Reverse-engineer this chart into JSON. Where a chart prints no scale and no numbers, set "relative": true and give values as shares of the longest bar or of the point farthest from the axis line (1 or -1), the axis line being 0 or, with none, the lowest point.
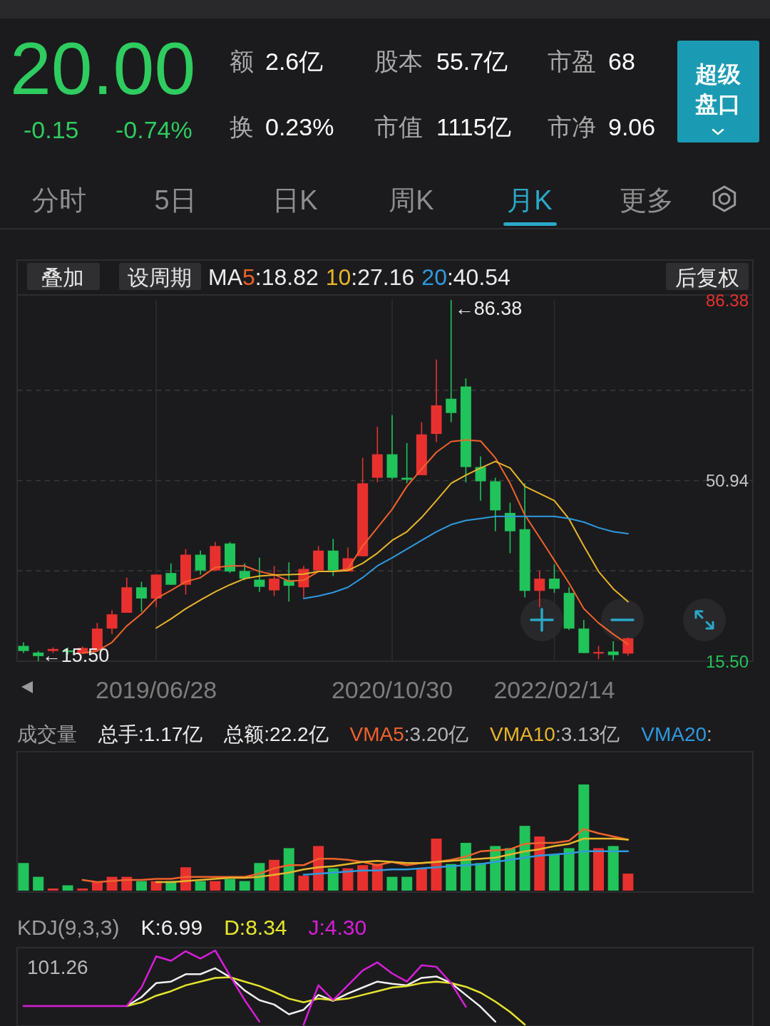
{
  "chart_data": [
    {
      "type": "other",
      "annotations": [
        "20.00",
        "-0.15",
        "-0.74%",
        "额",
        "2.6亿",
        "股本",
        "55.7亿",
        "市盈",
        "68",
        "换",
        "0.23%",
        "市值",
        "1115亿",
        "市净",
        "9.06",
        "超级",
        "盘口",
        "分时",
        "5日",
        "日K",
        "周K",
        "月K",
        "更多",
        "叠加",
        "设周期",
        "后复权"
      ]
    },
    {
      "type": "candlestick",
      "categories": [
        null,
        null,
        null,
        null,
        null,
        null,
        null,
        null,
        null,
        "2019/06/28",
        null,
        null,
        null,
        null,
        null,
        null,
        null,
        null,
        null,
        null,
        null,
        null,
        null,
        null,
        null,
        "2020/10/30",
        null,
        null,
        null,
        null,
        null,
        null,
        null,
        null,
        null,
        null,
        "2022/02/14",
        null,
        null,
        null,
        null,
        null
      ],
      "ohlc": [
        [
          18.5,
          19.2,
          17.1,
          17.5
        ],
        [
          17.2,
          17.5,
          15.5,
          16.5
        ],
        [
          17.5,
          18.2,
          17.1,
          17.9
        ],
        [
          17.6,
          18.2,
          16.8,
          17.3
        ],
        [
          17.0,
          18.4,
          16.9,
          18.1
        ],
        [
          17.6,
          23.0,
          17.4,
          21.9
        ],
        [
          21.9,
          25.5,
          20.8,
          24.7
        ],
        [
          25.0,
          31.9,
          25.0,
          30.0
        ],
        [
          30.0,
          31.1,
          25.2,
          27.8
        ],
        [
          27.8,
          32.5,
          26.1,
          32.5
        ],
        [
          32.8,
          34.7,
          30.5,
          30.5
        ],
        [
          30.5,
          37.5,
          28.6,
          36.4
        ],
        [
          36.4,
          37.2,
          32.5,
          33.3
        ],
        [
          33.3,
          38.9,
          33.3,
          38.1
        ],
        [
          38.6,
          38.9,
          32.8,
          33.1
        ],
        [
          33.2,
          34.7,
          31.4,
          31.7
        ],
        [
          31.5,
          35.8,
          29.1,
          30.1
        ],
        [
          29.4,
          34.2,
          28.3,
          31.7
        ],
        [
          31.4,
          34.9,
          27.2,
          30.3
        ],
        [
          30.0,
          34.2,
          28.0,
          33.6
        ],
        [
          33.3,
          38.1,
          33.3,
          37.2
        ],
        [
          37.2,
          39.5,
          32.2,
          33.3
        ],
        [
          33.1,
          37.8,
          33.1,
          35.7
        ],
        [
          36.1,
          55.4,
          36.1,
          50.4
        ],
        [
          51.5,
          61.5,
          50.6,
          56.1
        ],
        [
          56.1,
          63.8,
          51.2,
          51.5
        ],
        [
          51.5,
          58.3,
          50.4,
          51.1
        ],
        [
          52.0,
          62.4,
          52.0,
          60.0
        ],
        [
          60.1,
          74.7,
          58.5,
          65.7
        ],
        [
          67.0,
          86.38,
          62.4,
          64.2
        ],
        [
          69.4,
          71.0,
          50.6,
          53.6
        ],
        [
          53.6,
          55.7,
          47.0,
          50.8
        ],
        [
          50.8,
          51.5,
          41.0,
          45.1
        ],
        [
          44.6,
          46.6,
          36.7,
          41.0
        ],
        [
          41.4,
          50.4,
          28.0,
          29.3
        ],
        [
          29.3,
          33.3,
          26.1,
          31.7
        ],
        [
          31.7,
          34.5,
          28.9,
          29.7
        ],
        [
          28.9,
          30.0,
          21.6,
          21.9
        ],
        [
          21.9,
          23.6,
          17.1,
          17.1
        ],
        [
          17.0,
          18.5,
          15.9,
          17.3
        ],
        [
          17.4,
          19.4,
          15.7,
          16.7
        ],
        [
          17.0,
          20.2,
          16.6,
          20.0
        ]
      ],
      "colors": [
        "#21c35b",
        "#21c35b",
        "#e8312f",
        "#21c35b",
        "#e8312f",
        "#e8312f",
        "#e8312f",
        "#e8312f",
        "#21c35b",
        "#e8312f",
        "#21c35b",
        "#e8312f",
        "#21c35b",
        "#e8312f",
        "#21c35b",
        "#21c35b",
        "#21c35b",
        "#e8312f",
        "#21c35b",
        "#e8312f",
        "#e8312f",
        "#21c35b",
        "#e8312f",
        "#e8312f",
        "#e8312f",
        "#21c35b",
        "#21c35b",
        "#e8312f",
        "#e8312f",
        "#21c35b",
        "#21c35b",
        "#21c35b",
        "#21c35b",
        "#21c35b",
        "#21c35b",
        "#e8312f",
        "#21c35b",
        "#21c35b",
        "#21c35b",
        "#e8312f",
        "#21c35b",
        "#e8312f"
      ],
      "ylim": [
        15.5,
        86.38
      ],
      "yticks": [
        86.38,
        {
          "value": 68.66,
          "label": null
        },
        50.94,
        {
          "value": 33.22,
          "label": null
        },
        {
          "value": 15.5,
          "label": "15.50"
        }
      ],
      "grid": true,
      "legend": "top",
      "legend_title": "MA",
      "series": [
        {
          "type": "line",
          "name": "5:18.82",
          "color": "#f0622b",
          "values": [
            null,
            null,
            null,
            null,
            17.1,
            17.5,
            19.2,
            22.4,
            24.8,
            27.8,
            29.4,
            31.1,
            31.9,
            33.9,
            34.2,
            34.2,
            33.1,
            32.5,
            31.2,
            31.4,
            33.1,
            33.1,
            33.6,
            38.1,
            41.7,
            45.3,
            49.8,
            53.2,
            56.5,
            58.6,
            58.9,
            58.7,
            55.4,
            50.4,
            44.2,
            39.8,
            35.3,
            30.8,
            25.8,
            23.0,
            20.8,
            18.82
          ]
        },
        {
          "type": "line",
          "name": "10:27.16",
          "color": "#e8b52a",
          "values": [
            null,
            null,
            null,
            null,
            null,
            null,
            null,
            null,
            null,
            22.0,
            23.8,
            25.8,
            27.5,
            29.1,
            30.5,
            31.7,
            32.2,
            32.4,
            32.5,
            32.6,
            33.1,
            33.1,
            33.3,
            34.7,
            36.7,
            39.2,
            40.9,
            43.7,
            47.0,
            50.4,
            52.0,
            53.4,
            54.7,
            53.4,
            49.8,
            48.4,
            47.0,
            43.4,
            38.1,
            33.1,
            29.7,
            27.16
          ]
        },
        {
          "type": "line",
          "name": "20:40.54",
          "color": "#2e9ae0",
          "values": [
            null,
            null,
            null,
            null,
            null,
            null,
            null,
            null,
            null,
            null,
            null,
            null,
            null,
            null,
            null,
            null,
            null,
            null,
            null,
            27.8,
            28.3,
            29.0,
            30.0,
            31.9,
            34.2,
            35.8,
            37.5,
            39.2,
            40.9,
            42.3,
            43.1,
            43.5,
            43.9,
            43.9,
            43.9,
            43.9,
            43.9,
            43.5,
            42.8,
            41.7,
            40.9,
            40.54
          ]
        }
      ],
      "annotations": [
        "←86.38",
        "←15.50"
      ]
    },
    {
      "type": "bar",
      "title": "成交量",
      "relative": true,
      "legend": "top",
      "categories": [
        null,
        null,
        null,
        null,
        null,
        null,
        null,
        null,
        null,
        null,
        null,
        null,
        null,
        null,
        null,
        null,
        null,
        null,
        null,
        null,
        null,
        null,
        null,
        null,
        null,
        null,
        null,
        null,
        null,
        null,
        null,
        null,
        null,
        null,
        null,
        null,
        null,
        null,
        null,
        null,
        null,
        null
      ],
      "annotations": [
        "总手:1.17亿",
        "总额:22.2亿"
      ],
      "series": [
        {
          "values": [
            0.26,
            0.13,
            0.02,
            0.05,
            0.02,
            0.08,
            0.13,
            0.13,
            0.09,
            0.09,
            0.09,
            0.22,
            0.09,
            0.09,
            0.11,
            0.09,
            0.26,
            0.29,
            0.4,
            0.14,
            0.42,
            0.21,
            0.21,
            0.24,
            0.25,
            0.13,
            0.13,
            0.21,
            0.49,
            0.25,
            0.45,
            0.26,
            0.42,
            0.4,
            0.61,
            0.51,
            0.34,
            0.4,
            1,
            0.4,
            0.42,
            0.16
          ],
          "colors": [
            "#21c35b",
            "#21c35b",
            "#e8312f",
            "#21c35b",
            "#e8312f",
            "#e8312f",
            "#e8312f",
            "#e8312f",
            "#21c35b",
            "#e8312f",
            "#21c35b",
            "#e8312f",
            "#21c35b",
            "#e8312f",
            "#21c35b",
            "#21c35b",
            "#21c35b",
            "#e8312f",
            "#21c35b",
            "#e8312f",
            "#e8312f",
            "#21c35b",
            "#e8312f",
            "#e8312f",
            "#e8312f",
            "#21c35b",
            "#21c35b",
            "#e8312f",
            "#e8312f",
            "#21c35b",
            "#21c35b",
            "#21c35b",
            "#21c35b",
            "#21c35b",
            "#21c35b",
            "#e8312f",
            "#21c35b",
            "#21c35b",
            "#21c35b",
            "#e8312f",
            "#21c35b",
            "#e8312f"
          ]
        },
        {
          "type": "line",
          "name": "VMA5:3.20亿",
          "color": "#f0622b",
          "values": [
            null,
            null,
            null,
            null,
            0.1,
            0.08,
            0.09,
            0.1,
            0.1,
            0.11,
            0.11,
            0.13,
            0.13,
            0.13,
            0.13,
            0.13,
            0.16,
            0.21,
            0.24,
            0.24,
            0.3,
            0.3,
            0.29,
            0.27,
            0.24,
            0.27,
            0.24,
            0.26,
            0.27,
            0.29,
            0.32,
            0.37,
            0.38,
            0.39,
            0.44,
            0.45,
            0.45,
            0.47,
            0.58,
            0.54,
            0.51,
            0.48
          ]
        },
        {
          "type": "line",
          "name": "VMA10:3.13亿",
          "color": "#e8b52a",
          "values": [
            null,
            null,
            null,
            null,
            null,
            null,
            null,
            null,
            null,
            0.08,
            0.08,
            0.09,
            0.1,
            0.11,
            0.12,
            0.12,
            0.13,
            0.15,
            0.17,
            0.2,
            0.22,
            0.23,
            0.25,
            0.27,
            0.28,
            0.27,
            0.26,
            0.26,
            0.27,
            0.28,
            0.29,
            0.3,
            0.31,
            0.34,
            0.37,
            0.39,
            0.42,
            0.44,
            0.49,
            0.49,
            0.49,
            0.48
          ]
        },
        {
          "type": "line",
          "name": "VMA20:",
          "color": "#2e9ae0",
          "values": [
            null,
            null,
            null,
            null,
            null,
            null,
            null,
            null,
            null,
            null,
            null,
            null,
            null,
            null,
            null,
            null,
            null,
            null,
            null,
            0.15,
            0.16,
            0.17,
            0.18,
            0.19,
            0.19,
            0.2,
            0.2,
            0.21,
            0.22,
            0.23,
            0.24,
            0.25,
            0.27,
            0.29,
            0.31,
            0.33,
            0.34,
            0.35,
            0.37,
            0.37,
            0.37,
            0.37
          ]
        }
      ]
    },
    {
      "type": "line",
      "title": "KDJ(9,3,3)",
      "relative": true,
      "legend": "top",
      "categories": [
        null,
        null,
        null,
        null,
        null,
        null,
        null,
        null,
        null,
        null,
        null,
        null,
        null,
        null,
        null,
        null,
        null,
        null,
        null,
        null,
        null,
        null,
        null,
        null,
        null,
        null,
        null,
        null,
        null,
        null,
        null,
        null,
        null,
        null,
        null,
        null,
        null,
        null,
        null,
        null,
        null,
        null
      ],
      "annotations": [
        "101.26"
      ],
      "series": [
        {
          "name": "K:6.99",
          "color": "#f0f0f0",
          "values": [
            null,
            null,
            null,
            null,
            null,
            null,
            null,
            0.25,
            0.37,
            0.56,
            0.58,
            0.68,
            0.68,
            0.76,
            0.64,
            0.46,
            0.33,
            0.27,
            0.14,
            0.2,
            0.4,
            0.32,
            0.42,
            0.5,
            0.58,
            0.55,
            0.53,
            0.63,
            0.65,
            0.56,
            0.4,
            0.24,
            0.04,
            null,
            null,
            null,
            null,
            null,
            null,
            null,
            null,
            null
          ]
        },
        {
          "name": "D:8.34",
          "color": "#e5e52e",
          "values": [
            null,
            null,
            null,
            null,
            null,
            null,
            null,
            0.25,
            0.3,
            0.39,
            0.45,
            0.53,
            0.58,
            0.63,
            0.64,
            0.58,
            0.52,
            0.44,
            0.35,
            0.3,
            0.35,
            0.33,
            0.35,
            0.4,
            0.45,
            0.5,
            0.52,
            0.56,
            0.58,
            0.56,
            0.51,
            0.43,
            0.31,
            0.17,
            0,
            null,
            null,
            null,
            null,
            null,
            null,
            null
          ]
        },
        {
          "name": "J:4.30",
          "color": "#d81ed8",
          "values": [
            0.25,
            0.25,
            0.25,
            0.25,
            0.25,
            0.25,
            0.25,
            0.25,
            0.5,
            0.92,
            0.86,
            0.99,
            0.89,
            1,
            0.66,
            0.33,
            0.04,
            null,
            null,
            0,
            0.53,
            0.33,
            0.53,
            0.73,
            0.84,
            0.69,
            0.58,
            0.8,
            0.78,
            0.56,
            0.24,
            null,
            null,
            null,
            null,
            null,
            null,
            null,
            null,
            null,
            null,
            null
          ]
        }
      ]
    }
  ]
}
